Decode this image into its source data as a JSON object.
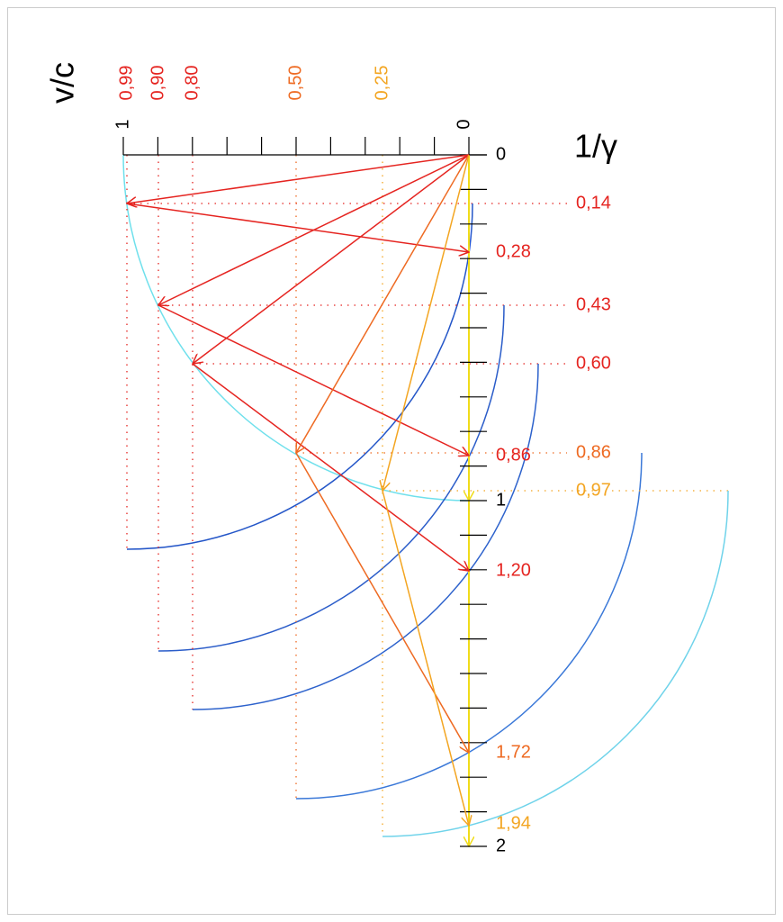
{
  "axis": {
    "velocity_label": "v/c",
    "inverse_gamma_label": "1/γ",
    "velocity_end_labels": [
      "1",
      "0"
    ],
    "time_labels": [
      "0",
      "1",
      "2"
    ]
  },
  "velocity_labels": [
    "0,99",
    "0,90",
    "0,80",
    "0,50",
    "0,25"
  ],
  "gamma_labels": [
    "0,14",
    "0,43",
    "0,60",
    "0,86",
    "0,97"
  ],
  "return_labels": [
    "0,28",
    "0,86",
    "1,20",
    "1,72",
    "1,94"
  ]
}
